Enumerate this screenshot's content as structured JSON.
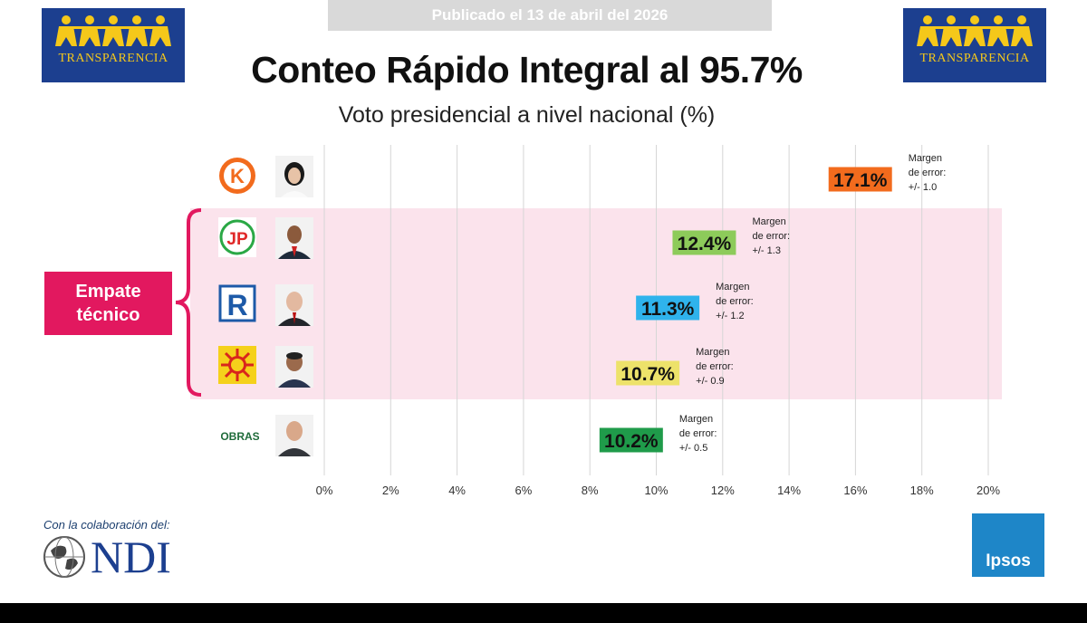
{
  "header": {
    "published": "Publicado el 13 de abril del 2026",
    "logo_text": "TRANSPARENCIA",
    "title": "Conteo Rápido Integral al 95.7%",
    "subtitle": "Voto presidencial a nivel nacional (%)"
  },
  "empate_label_line1": "Empate",
  "empate_label_line2": "técnico",
  "footer": {
    "colaboracion": "Con la colaboración del:",
    "ndi": "NDI",
    "ipsos": "Ipsos"
  },
  "colors": {
    "row_highlight": "#fbe3ec",
    "empate": "#e2185f",
    "grid": "#d6d6d6",
    "logo_bg": "#1c3f8f",
    "logo_text": "#f5c81a"
  },
  "chart_data": {
    "type": "bar",
    "orientation": "horizontal",
    "title": "Conteo Rápido Integral al 95.7%",
    "subtitle": "Voto presidencial a nivel nacional (%)",
    "xlim": [
      0,
      20
    ],
    "ticks": [
      0,
      2,
      4,
      6,
      8,
      10,
      12,
      14,
      16,
      18,
      20
    ],
    "tick_suffix": "%",
    "error_label_line1": "Margen",
    "error_label_line2": "de error:",
    "series": [
      {
        "party": "Fuerza Popular",
        "logo_text": "K",
        "value": 17.1,
        "label": "17.1%",
        "margin": "+/- 1.0",
        "color": "#f26b1d",
        "tied": false
      },
      {
        "party": "Juntos por el Perú",
        "logo_text": "JP",
        "value": 12.4,
        "label": "12.4%",
        "margin": "+/- 1.3",
        "color": "#8dcb5a",
        "tied": true
      },
      {
        "party": "Renovación Popular",
        "logo_text": "R",
        "value": 11.3,
        "label": "11.3%",
        "margin": "+/- 1.2",
        "color": "#2fb3ec",
        "tied": true
      },
      {
        "party": "Perú Primero",
        "logo_text": "",
        "value": 10.7,
        "label": "10.7%",
        "margin": "+/- 0.9",
        "color": "#ede26a",
        "tied": true
      },
      {
        "party": "Obras",
        "logo_text": "OBRAS",
        "value": 10.2,
        "label": "10.2%",
        "margin": "+/- 0.5",
        "color": "#1f9b4a",
        "tied": false
      }
    ]
  }
}
